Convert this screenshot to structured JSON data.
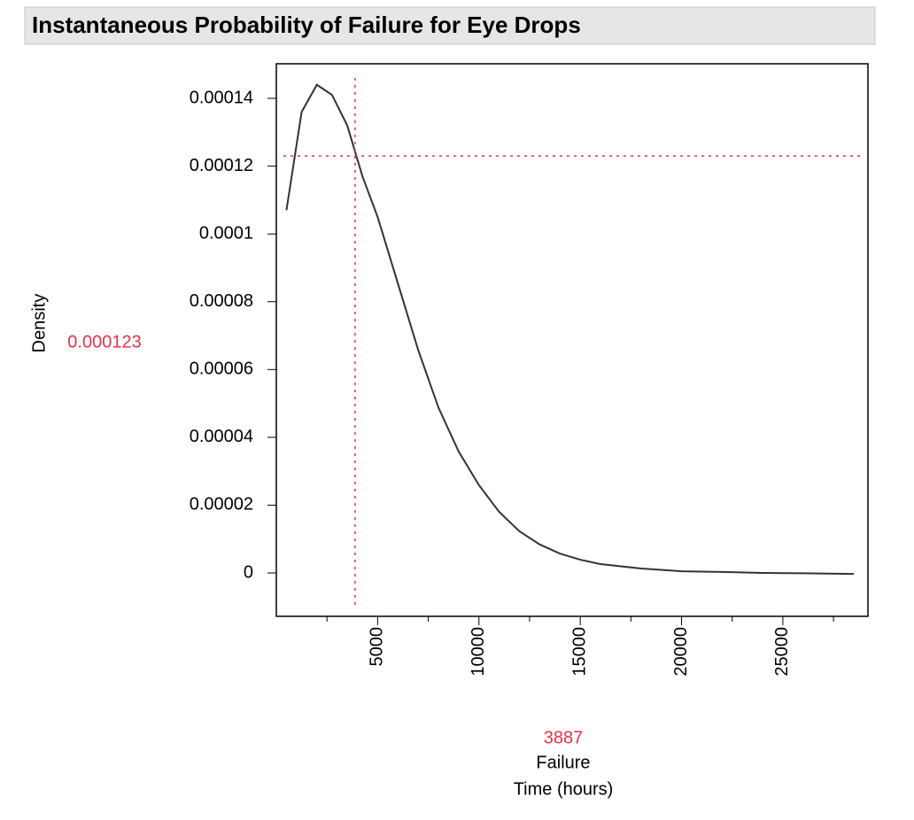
{
  "chart_data": {
    "type": "line",
    "title": "Instantaneous Probability of Failure for Eye Drops",
    "ylabel": "Density",
    "xlabel": [
      "Failure",
      "Time (hours)"
    ],
    "x": [
      500,
      1250,
      2000,
      2750,
      3500,
      4250,
      5000,
      6000,
      7000,
      8000,
      9000,
      10000,
      11000,
      12000,
      13000,
      14000,
      15000,
      16000,
      18000,
      20000,
      22000,
      24000,
      26000,
      28500
    ],
    "series": [
      {
        "name": "Density",
        "color": "#333333",
        "values": [
          0.000107,
          0.000136,
          0.000144,
          0.000141,
          0.000132,
          0.000117,
          0.000105,
          8.54e-05,
          6.58e-05,
          4.88e-05,
          3.58e-05,
          2.59e-05,
          1.8e-05,
          1.23e-05,
          8.4e-06,
          5.7e-06,
          3.9e-06,
          2.6e-06,
          1.3e-06,
          5e-07,
          3e-07,
          0,
          -1e-07,
          -3e-07
        ]
      }
    ],
    "xlim": [
      0,
      29200
    ],
    "ylim": [
      -1.28e-05,
      0.0001502
    ],
    "xticks": [
      5000,
      10000,
      15000,
      20000,
      25000
    ],
    "xminorticks": [
      2500,
      7500,
      12500,
      17500,
      22500,
      27500
    ],
    "yticks": [
      0,
      2e-05,
      4e-05,
      6e-05,
      8e-05,
      0.0001,
      0.00012,
      0.00014
    ],
    "crosshair": {
      "x": 3887,
      "y": 0.000123,
      "color": "#e8314f"
    }
  }
}
